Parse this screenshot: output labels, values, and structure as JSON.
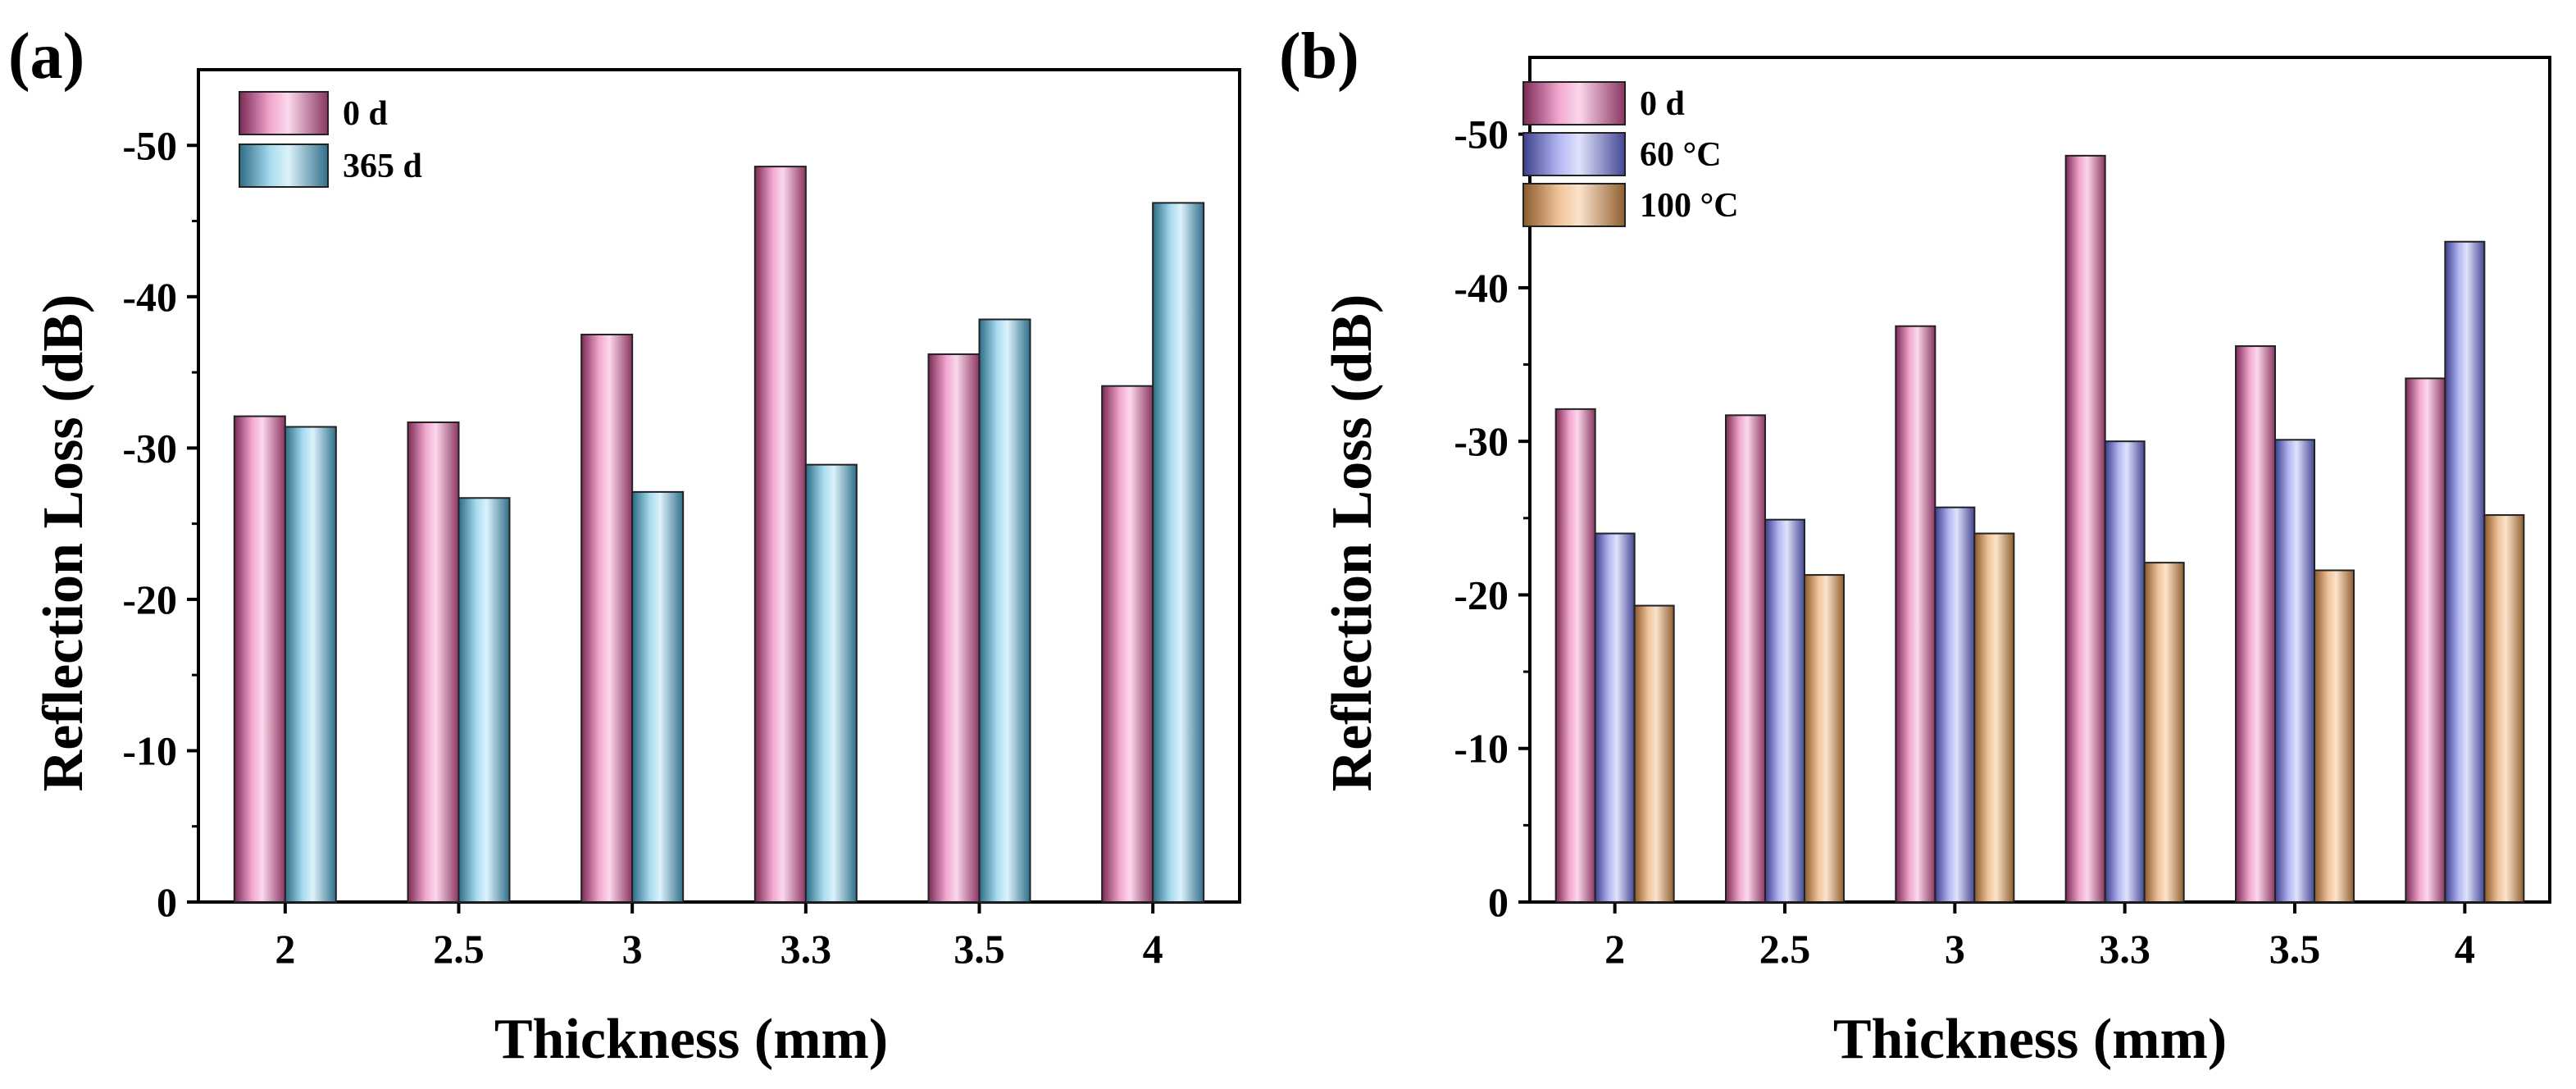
{
  "chart_data": [
    {
      "panel": "(a)",
      "type": "bar",
      "xlabel": "Thickness (mm)",
      "ylabel": "Reflection Loss (dB)",
      "categories": [
        "2",
        "2.5",
        "3",
        "3.3",
        "3.5",
        "4"
      ],
      "ylim": [
        0,
        -55
      ],
      "yticks": [
        0,
        -10,
        -20,
        -30,
        -40,
        -50
      ],
      "ytick_labels": [
        "0",
        "-10",
        "-20",
        "-30",
        "-40",
        "-50"
      ],
      "series": [
        {
          "name": "0 d",
          "color": "#f2a7cf",
          "values": [
            -32.1,
            -31.7,
            -37.5,
            -48.6,
            -36.2,
            -34.1
          ]
        },
        {
          "name": "365 d",
          "color": "#a8dcf0",
          "values": [
            -31.4,
            -26.7,
            -27.1,
            -28.9,
            -38.5,
            -46.2
          ]
        }
      ],
      "legend": "top-left"
    },
    {
      "panel": "(b)",
      "type": "bar",
      "xlabel": "Thickness (mm)",
      "ylabel": "Reflection Loss (dB)",
      "categories": [
        "2",
        "2.5",
        "3",
        "3.3",
        "3.5",
        "4"
      ],
      "ylim": [
        0,
        -55
      ],
      "yticks": [
        0,
        -10,
        -20,
        -30,
        -40,
        -50
      ],
      "ytick_labels": [
        "0",
        "-10",
        "-20",
        "-30",
        "-40",
        "-50"
      ],
      "series": [
        {
          "name": "0 d",
          "color": "#f2a7cf",
          "values": [
            -32.1,
            -31.7,
            -37.5,
            -48.6,
            -36.2,
            -34.1
          ]
        },
        {
          "name": "60 °C",
          "color": "#b3b7f2",
          "values": [
            -24.0,
            -24.9,
            -25.7,
            -30.0,
            -30.1,
            -43.0
          ]
        },
        {
          "name": "100 °C",
          "color": "#f0c39a",
          "values": [
            -19.3,
            -21.3,
            -24.0,
            -22.1,
            -21.6,
            -25.2
          ]
        }
      ],
      "legend": "top-left"
    }
  ]
}
